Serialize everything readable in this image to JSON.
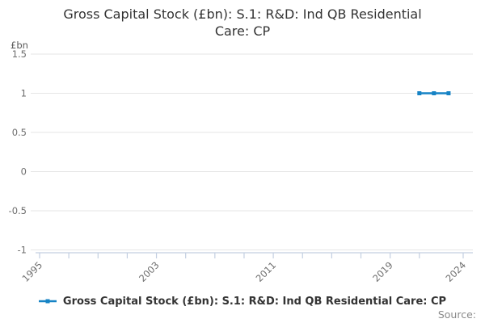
{
  "title": {
    "full": "Gross Capital Stock (£bn): S.1: R&D: Ind QB Residential Care: CP",
    "lines": [
      "Gross Capital Stock (£bn): S.1: R&D: Ind QB Residential",
      "Care: CP"
    ]
  },
  "legend": {
    "items": [
      {
        "label": "Gross Capital Stock (£bn): S.1: R&D: Ind QB Residential Care: CP",
        "color": "#1683c5"
      }
    ]
  },
  "source": {
    "text": "Source:"
  },
  "colors": {
    "line": "#1683c5",
    "grid": "#e6e6e6",
    "axis": "#c3cfe1",
    "tick_text": "#6e6e6e",
    "unit_text": "#595959",
    "title_text": "#333333",
    "source_text": "#8a8a8a"
  },
  "chart_data": {
    "type": "line",
    "title": "Gross Capital Stock (£bn): S.1: R&D: Ind QB Residential Care: CP",
    "unit_label": "£bn",
    "x": [
      2021,
      2022,
      2023
    ],
    "series": [
      {
        "name": "Gross Capital Stock (£bn): S.1: R&D: Ind QB Residential Care: CP",
        "values": [
          1.0,
          1.0,
          1.0
        ],
        "color": "#1683c5"
      }
    ],
    "xlim": [
      1995,
      2024
    ],
    "ylim": [
      -1,
      1.5
    ],
    "grid": true,
    "legend_position": "bottom",
    "y_ticks": [
      {
        "value": 1.5,
        "label": "1.5"
      },
      {
        "value": 1,
        "label": "1"
      },
      {
        "value": 0.5,
        "label": "0.5"
      },
      {
        "value": 0,
        "label": "0"
      },
      {
        "value": -0.5,
        "label": "-0.5"
      },
      {
        "value": -1,
        "label": "-1"
      }
    ],
    "x_minor_tick_years": [
      1995,
      1997,
      1999,
      2001,
      2003,
      2005,
      2007,
      2009,
      2011,
      2013,
      2015,
      2017,
      2019,
      2021,
      2024
    ],
    "x_tick_labels": [
      {
        "year": 1995,
        "label": "1995"
      },
      {
        "year": 2003,
        "label": "2003"
      },
      {
        "year": 2011,
        "label": "2011"
      },
      {
        "year": 2019,
        "label": "2019"
      },
      {
        "year": 2024,
        "label": "2024"
      }
    ]
  }
}
